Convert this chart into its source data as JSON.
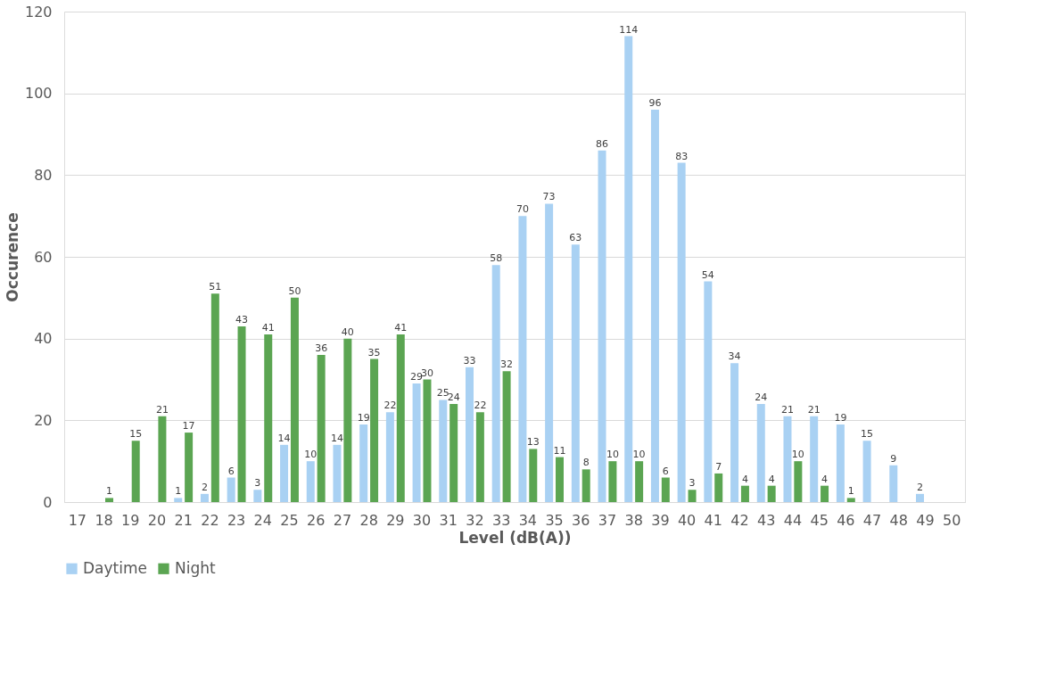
{
  "chart_data": {
    "type": "bar",
    "xlabel": "Level (dB(A))",
    "ylabel": "Occurence",
    "categories": [
      "17",
      "18",
      "19",
      "20",
      "21",
      "22",
      "23",
      "24",
      "25",
      "26",
      "27",
      "28",
      "29",
      "30",
      "31",
      "32",
      "33",
      "34",
      "35",
      "36",
      "37",
      "38",
      "39",
      "40",
      "41",
      "42",
      "43",
      "44",
      "45",
      "46",
      "47",
      "48",
      "49",
      "50"
    ],
    "series": [
      {
        "name": "Daytime",
        "color": "#a9d1f3",
        "values": [
          null,
          null,
          null,
          null,
          1,
          2,
          6,
          3,
          14,
          10,
          14,
          19,
          22,
          29,
          25,
          33,
          58,
          70,
          73,
          63,
          86,
          114,
          96,
          83,
          54,
          34,
          24,
          21,
          21,
          19,
          15,
          9,
          2,
          null
        ]
      },
      {
        "name": "Night",
        "color": "#5ba552",
        "values": [
          null,
          1,
          15,
          21,
          17,
          51,
          43,
          41,
          50,
          36,
          40,
          35,
          41,
          30,
          24,
          22,
          32,
          13,
          11,
          8,
          10,
          10,
          6,
          3,
          7,
          4,
          4,
          10,
          4,
          1,
          null,
          null,
          null,
          null
        ]
      }
    ],
    "ylim": [
      0,
      120
    ],
    "yticks": [
      0,
      20,
      40,
      60,
      80,
      100,
      120
    ],
    "grid": "y",
    "legend": "bottom",
    "data_labels": true
  }
}
